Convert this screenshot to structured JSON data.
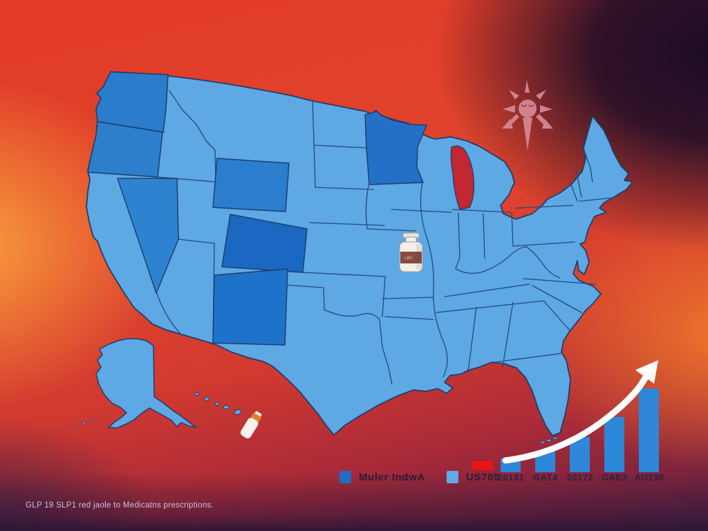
{
  "caption": "GLP 19 SLP1 red jaole to Medicatns prescriptions.",
  "legend": {
    "items": [
      {
        "label": "Muler IndwA",
        "color": "#1f6ec5"
      },
      {
        "label": "US705",
        "color": "#5fabea"
      }
    ],
    "red_marker_color": "#ea1414"
  },
  "chart_data": {
    "type": "bar",
    "categories": [
      "20131",
      "GAT4",
      "20172",
      "GAE3",
      "AU130"
    ],
    "values": [
      20,
      31,
      51,
      80,
      121
    ],
    "value_unit": "relative-bar-height-px (no axis shown)",
    "bar_color": "#2f87d9",
    "trend_arrow_color": "#ffffff",
    "title": "",
    "xlabel": "",
    "ylabel": "",
    "grid": false,
    "legend_position": "none"
  },
  "map": {
    "name": "united-states-choropleth",
    "base_state_color": "#5ea8e4",
    "highlight_state_color": "#2b7ccb",
    "dark_state_color": "#1a68c2",
    "border_color": "#1d3f6b",
    "lake_color": "#c22832",
    "highlighted_states": [
      "Washington",
      "Oregon",
      "Nevada",
      "Wyoming",
      "Colorado",
      "New Mexico",
      "Minnesota"
    ]
  },
  "icons": {
    "vial_icon": "medicine-vial",
    "vial_label_text": "LBC",
    "tilted_vial_icon": "tilted-medicine-vial",
    "sun_pin_icon": "sun-pin-starburst",
    "sun_pin_color": "#d0818d",
    "growth_arrow_icon": "upward-trend-arrow"
  }
}
